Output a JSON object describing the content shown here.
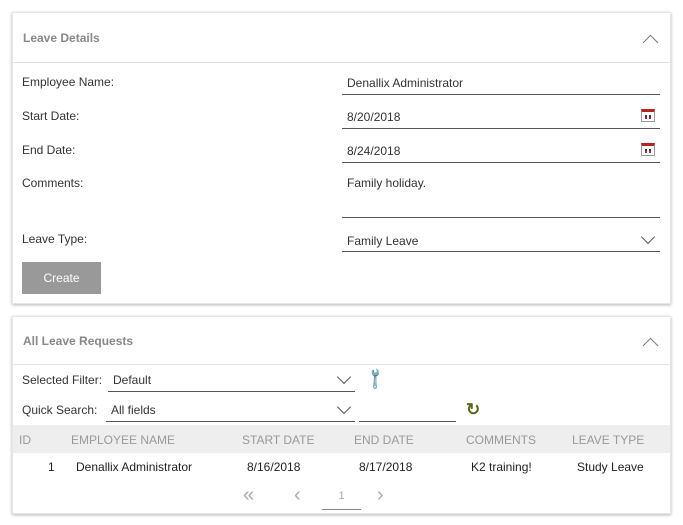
{
  "leave_details": {
    "title": "Leave Details",
    "employee_name_label": "Employee Name:",
    "employee_name": "Denallix Administrator",
    "start_date_label": "Start Date:",
    "start_date": "8/20/2018",
    "end_date_label": "End Date:",
    "end_date": "8/24/2018",
    "comments_label": "Comments:",
    "comments": "Family holiday.",
    "leave_type_label": "Leave Type:",
    "leave_type": "Family Leave",
    "create_label": "Create"
  },
  "requests": {
    "title": "All Leave Requests",
    "filter_label": "Selected Filter:",
    "filter_value": "Default",
    "search_label": "Quick Search:",
    "search_field": "All fields",
    "search_text": "",
    "columns": [
      "ID",
      "EMPLOYEE NAME",
      "START DATE",
      "END DATE",
      "COMMENTS",
      "LEAVE TYPE"
    ],
    "rows": [
      [
        "1",
        "Denallix Administrator",
        "8/16/2018",
        "8/17/2018",
        "K2 training!",
        "Study Leave"
      ]
    ],
    "page": "1"
  },
  "colors": {
    "create_button": "#999999",
    "header_band": "#eeeeee",
    "refresh_icon": "#5a6a1a",
    "calendar_accent": "#bb2222"
  }
}
